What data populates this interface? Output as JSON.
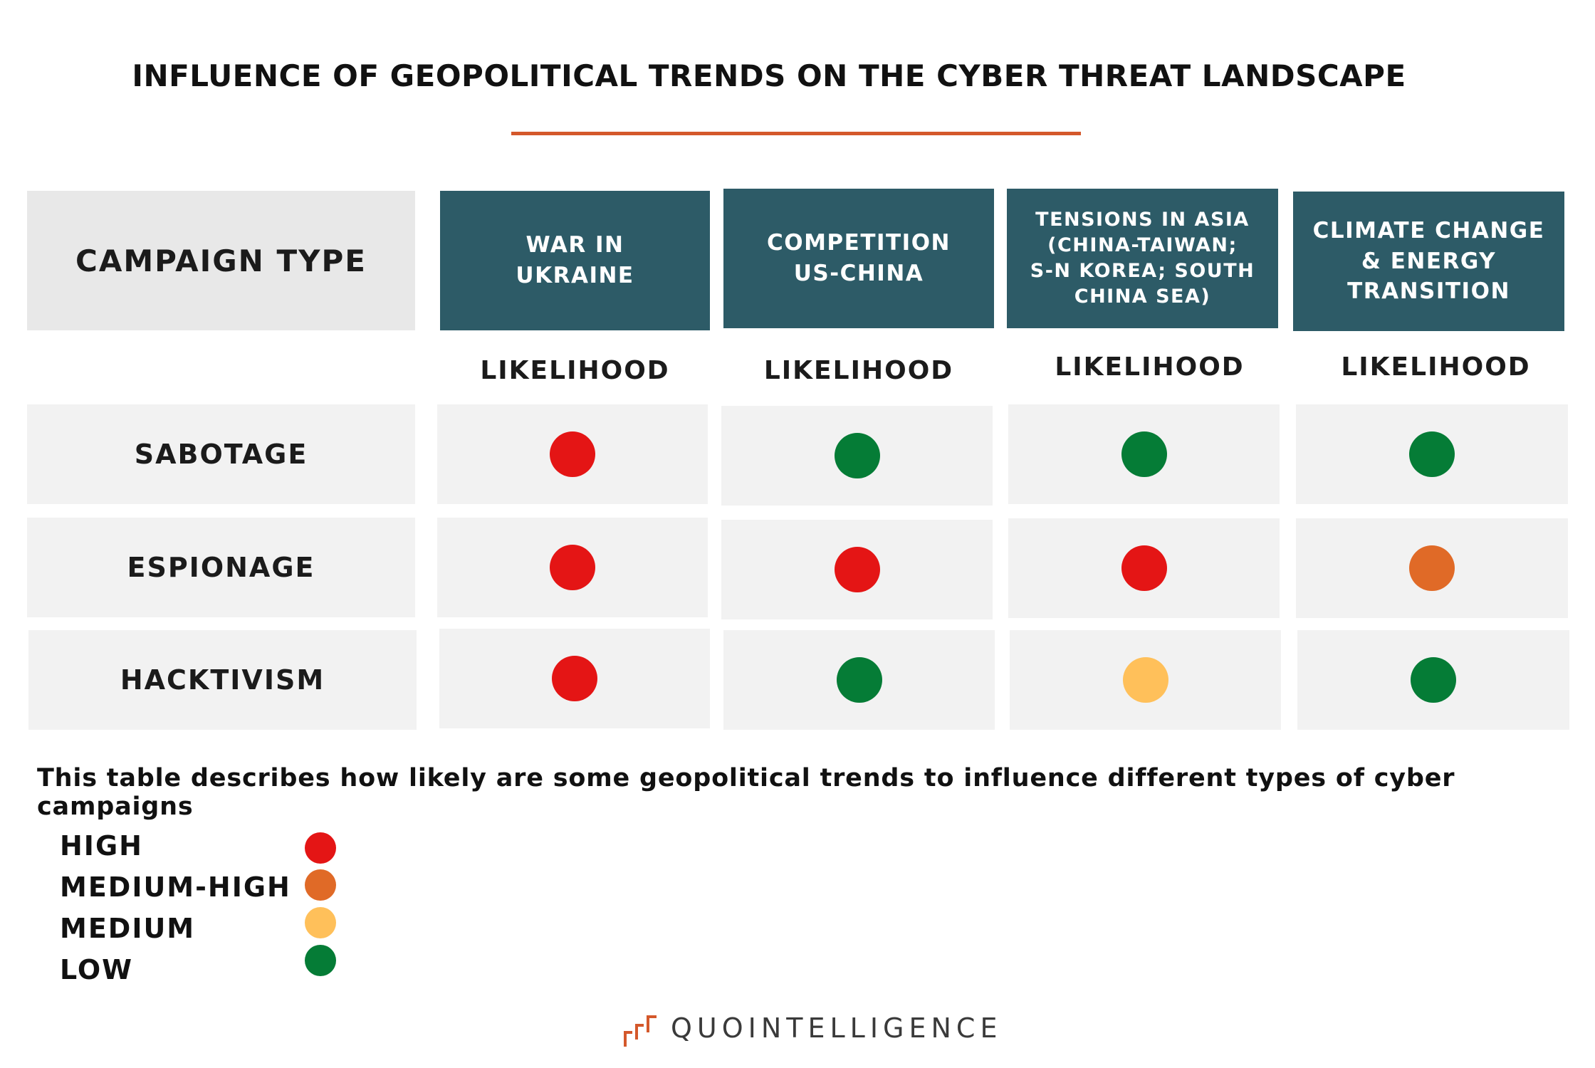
{
  "title": "INFLUENCE OF GEOPOLITICAL TRENDS ON THE CYBER THREAT LANDSCAPE",
  "table": {
    "corner_header": "CAMPAIGN TYPE",
    "columns": [
      {
        "label": "WAR IN\nUKRAINE",
        "sub_label": "LIKELIHOOD"
      },
      {
        "label": "COMPETITION\nUS-CHINA",
        "sub_label": "LIKELIHOOD"
      },
      {
        "label": "TENSIONS IN ASIA\n(CHINA-TAIWAN;\nS-N KOREA; SOUTH\nCHINA SEA)",
        "sub_label": "LIKELIHOOD"
      },
      {
        "label": "CLIMATE CHANGE\n& ENERGY\nTRANSITION",
        "sub_label": "LIKELIHOOD"
      }
    ],
    "rows": [
      {
        "label": "SABOTAGE",
        "levels": [
          "high",
          "low",
          "low",
          "low"
        ]
      },
      {
        "label": "ESPIONAGE",
        "levels": [
          "high",
          "high",
          "high",
          "medium-high"
        ]
      },
      {
        "label": "HACKTIVISM",
        "levels": [
          "high",
          "low",
          "medium",
          "low"
        ]
      }
    ]
  },
  "caption": "This table describes how likely are some geopolitical trends to influence different types of cyber campaigns",
  "legend": [
    {
      "label": "HIGH",
      "level": "high"
    },
    {
      "label": "MEDIUM-HIGH",
      "level": "medium-high"
    },
    {
      "label": "MEDIUM",
      "level": "medium"
    },
    {
      "label": "LOW",
      "level": "low"
    }
  ],
  "colors": {
    "high": "#e41515",
    "medium-high": "#e06a27",
    "medium": "#ffc05a",
    "low": "#057c36",
    "header_bg": "#2d5b67",
    "accent": "#d4582b"
  },
  "logo": {
    "part1": "QUO",
    "part2": "INTELLIGENCE"
  }
}
